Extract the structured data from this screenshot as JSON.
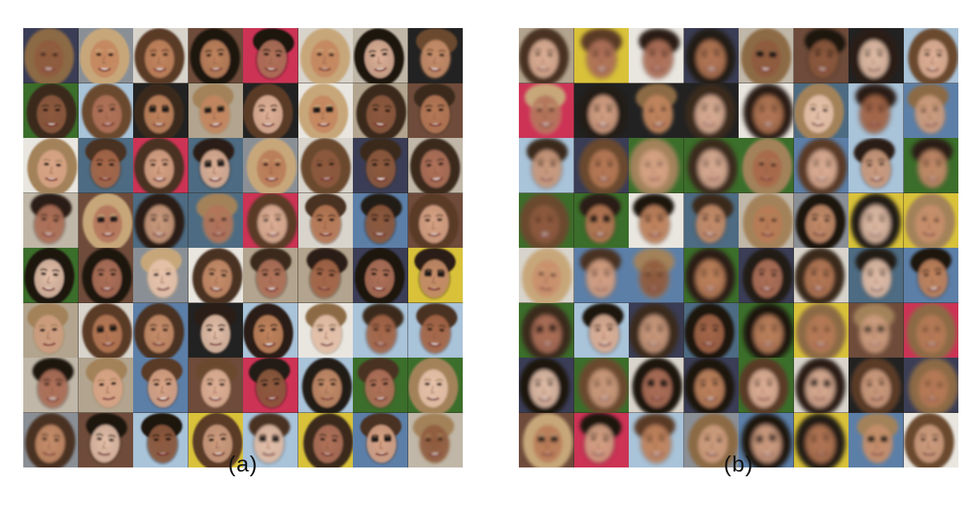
{
  "figure": {
    "panels": [
      {
        "id": "a",
        "caption": "(a)"
      },
      {
        "id": "b",
        "caption": "(b)"
      }
    ],
    "grid": {
      "rows": 8,
      "cols": 8
    }
  },
  "palettes": {
    "skin": [
      "#c98f6c",
      "#d9a587",
      "#b97a57",
      "#e0b399",
      "#a8694a",
      "#cf9d80",
      "#8f5a3e",
      "#e6c2ab",
      "#c4865f",
      "#b3735a"
    ],
    "hair": [
      "#2b1d14",
      "#4a3020",
      "#6b4a2e",
      "#8c6a45",
      "#1a1411",
      "#a3825a",
      "#3a2a1f",
      "#c7a77a",
      "#5a3b28",
      "#241a16"
    ],
    "bg": [
      "#3b6e2a",
      "#d8d4cc",
      "#5c7fa8",
      "#222222",
      "#8a8f96",
      "#c0b7a8",
      "#6e4b3a",
      "#a9c3d9",
      "#3a3d55",
      "#b2a48e",
      "#cc3355",
      "#d9c23a",
      "#4d6b82",
      "#e9e6e0"
    ]
  }
}
